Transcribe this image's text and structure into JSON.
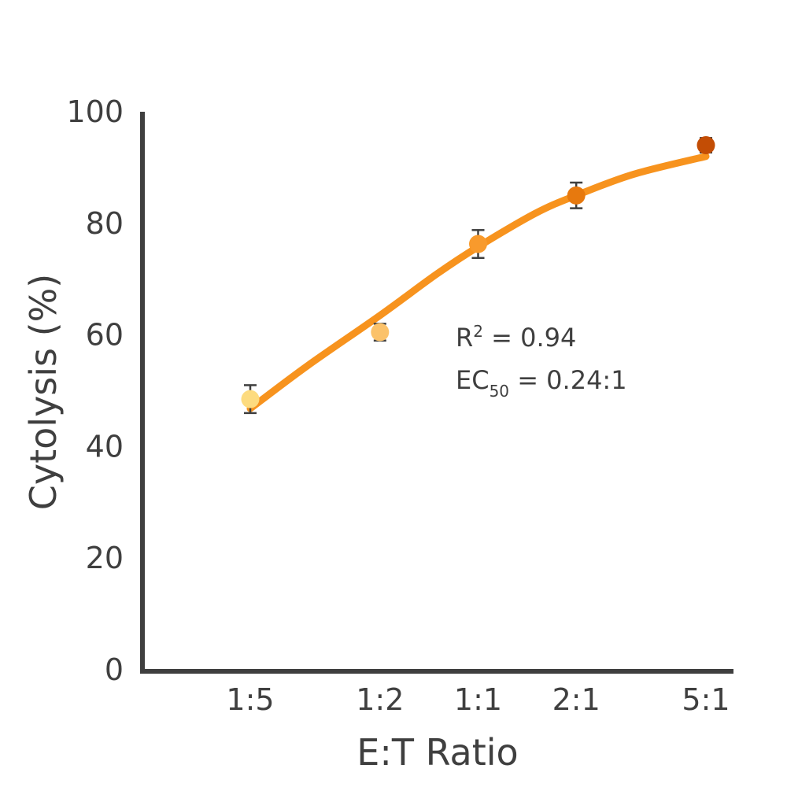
{
  "chart_data": {
    "type": "scatter",
    "xlabel": "E:T Ratio",
    "ylabel": "Cytolysis (%)",
    "ylim": [
      0,
      100
    ],
    "y_ticks": [
      "0",
      "20",
      "40",
      "60",
      "80",
      "100"
    ],
    "x_scale": "log",
    "categories": [
      "1:5",
      "1:2",
      "1:1",
      "2:1",
      "5:1"
    ],
    "x": [
      0.2,
      0.5,
      1,
      2,
      5
    ],
    "points": [
      {
        "label": "1:5",
        "y": 48.5,
        "err": 2.5,
        "color": "#fddb7f"
      },
      {
        "label": "1:2",
        "y": 60.5,
        "err": 1.5,
        "color": "#fbc26a"
      },
      {
        "label": "1:1",
        "y": 76.3,
        "err": 2.5,
        "color": "#f89a2c"
      },
      {
        "label": "2:1",
        "y": 85.0,
        "err": 2.3,
        "color": "#e7790e"
      },
      {
        "label": "5:1",
        "y": 94.0,
        "err": 1.3,
        "color": "#c34d05"
      }
    ],
    "fit": {
      "color": "#f7931e",
      "x": [
        0.2,
        0.3,
        0.5,
        0.75,
        1,
        1.5,
        2,
        3,
        5
      ],
      "y": [
        46.8,
        54.5,
        63.5,
        71.0,
        75.8,
        81.8,
        85.0,
        88.8,
        92.0
      ]
    },
    "annotations": {
      "r2_prefix": "R",
      "r2_sup": "2",
      "r2_value": " = 0.94",
      "ec_prefix": "EC",
      "ec_sub": "50",
      "ec_value": " = 0.24:1"
    },
    "colors": {
      "axis": "#3f3f3f",
      "text": "#3f3f3f",
      "errorbar": "#3f3f3f"
    }
  }
}
